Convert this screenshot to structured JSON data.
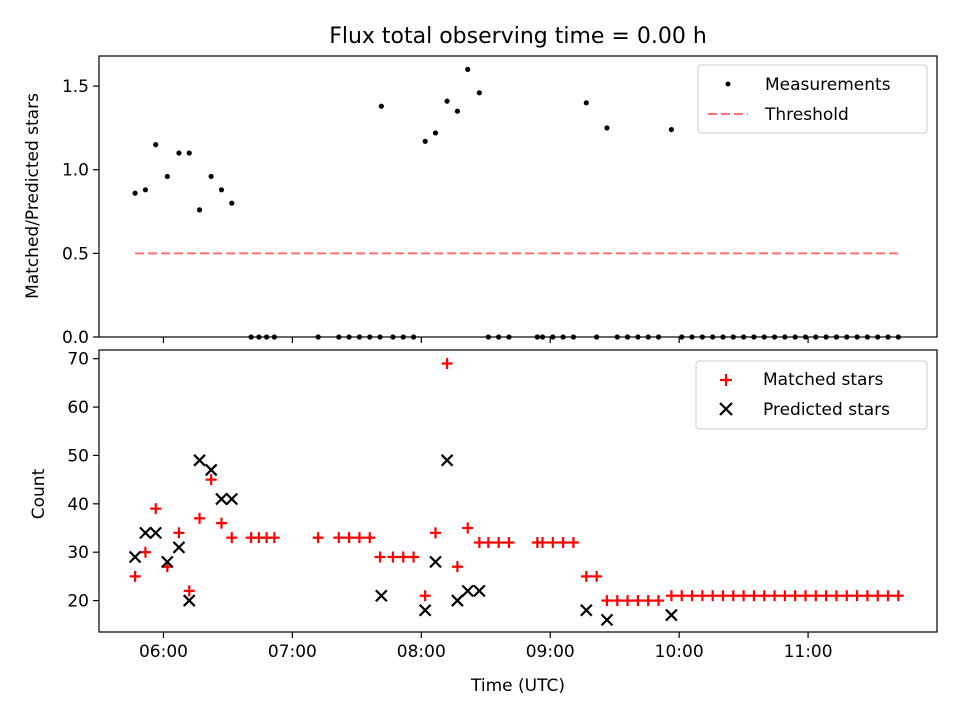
{
  "chart_data": [
    {
      "type": "scatter",
      "title": "Flux total observing time = 0.00 h",
      "xlabel": "",
      "ylabel": "Matched/Predicted stars",
      "xlim": [
        5.5,
        12.0
      ],
      "ylim": [
        0,
        1.68
      ],
      "yticks": [
        0.0,
        0.5,
        1.0,
        1.5
      ],
      "ytick_labels": [
        "0.0",
        "0.5",
        "1.0",
        "1.5"
      ],
      "legend_position": "top-right",
      "series": [
        {
          "name": "Measurements",
          "marker": "dot",
          "color": "#000000",
          "points": [
            [
              5.78,
              0.86
            ],
            [
              5.86,
              0.88
            ],
            [
              5.94,
              1.15
            ],
            [
              6.03,
              0.96
            ],
            [
              6.12,
              1.1
            ],
            [
              6.2,
              1.1
            ],
            [
              6.28,
              0.76
            ],
            [
              6.37,
              0.96
            ],
            [
              6.45,
              0.88
            ],
            [
              6.53,
              0.8
            ],
            [
              6.68,
              0
            ],
            [
              6.74,
              0
            ],
            [
              6.8,
              0
            ],
            [
              6.86,
              0
            ],
            [
              7.2,
              0
            ],
            [
              7.36,
              0
            ],
            [
              7.44,
              0
            ],
            [
              7.52,
              0
            ],
            [
              7.6,
              0
            ],
            [
              7.68,
              0
            ],
            [
              7.69,
              1.38
            ],
            [
              7.78,
              0
            ],
            [
              7.86,
              0
            ],
            [
              7.94,
              0
            ],
            [
              8.03,
              1.17
            ],
            [
              8.11,
              1.22
            ],
            [
              8.2,
              1.41
            ],
            [
              8.28,
              1.35
            ],
            [
              8.36,
              1.6
            ],
            [
              8.45,
              1.46
            ],
            [
              8.52,
              0
            ],
            [
              8.6,
              0
            ],
            [
              8.68,
              0
            ],
            [
              8.9,
              0
            ],
            [
              8.94,
              0
            ],
            [
              9.02,
              0
            ],
            [
              9.1,
              0
            ],
            [
              9.18,
              0
            ],
            [
              9.28,
              1.4
            ],
            [
              9.36,
              0
            ],
            [
              9.44,
              1.25
            ],
            [
              9.52,
              0
            ],
            [
              9.6,
              0
            ],
            [
              9.68,
              0
            ],
            [
              9.76,
              0
            ],
            [
              9.84,
              0
            ],
            [
              9.94,
              1.24
            ],
            [
              10.02,
              0
            ],
            [
              10.1,
              0
            ],
            [
              10.18,
              0
            ],
            [
              10.26,
              0
            ],
            [
              10.34,
              0
            ],
            [
              10.42,
              0
            ],
            [
              10.5,
              0
            ],
            [
              10.58,
              0
            ],
            [
              10.66,
              0
            ],
            [
              10.74,
              0
            ],
            [
              10.82,
              0
            ],
            [
              10.9,
              0
            ],
            [
              10.98,
              0
            ],
            [
              11.06,
              0
            ],
            [
              11.14,
              0
            ],
            [
              11.22,
              0
            ],
            [
              11.3,
              0
            ],
            [
              11.38,
              0
            ],
            [
              11.46,
              0
            ],
            [
              11.54,
              0
            ],
            [
              11.62,
              0
            ],
            [
              11.7,
              0
            ]
          ]
        },
        {
          "name": "Threshold",
          "line": "dashed",
          "color": "#ff7070",
          "points": [
            [
              5.78,
              0.5
            ],
            [
              11.7,
              0.5
            ]
          ]
        }
      ]
    },
    {
      "type": "scatter",
      "title": "",
      "xlabel": "Time (UTC)",
      "ylabel": "Count",
      "xlim": [
        5.5,
        12.0
      ],
      "ylim": [
        13.5,
        71.8
      ],
      "yticks": [
        20,
        30,
        40,
        50,
        60,
        70
      ],
      "ytick_labels": [
        "20",
        "30",
        "40",
        "50",
        "60",
        "70"
      ],
      "xticks": [
        6,
        7,
        8,
        9,
        10,
        11
      ],
      "xtick_labels": [
        "06:00",
        "07:00",
        "08:00",
        "09:00",
        "10:00",
        "11:00"
      ],
      "legend_position": "top-right",
      "series": [
        {
          "name": "Matched stars",
          "marker": "plus",
          "color": "#ff0000",
          "points": [
            [
              5.78,
              25
            ],
            [
              5.86,
              30
            ],
            [
              5.94,
              39
            ],
            [
              6.03,
              27
            ],
            [
              6.12,
              34
            ],
            [
              6.2,
              22
            ],
            [
              6.28,
              37
            ],
            [
              6.37,
              45
            ],
            [
              6.45,
              36
            ],
            [
              6.53,
              33
            ],
            [
              6.68,
              33
            ],
            [
              6.74,
              33
            ],
            [
              6.8,
              33
            ],
            [
              6.86,
              33
            ],
            [
              7.2,
              33
            ],
            [
              7.36,
              33
            ],
            [
              7.44,
              33
            ],
            [
              7.52,
              33
            ],
            [
              7.6,
              33
            ],
            [
              7.68,
              29
            ],
            [
              7.78,
              29
            ],
            [
              7.86,
              29
            ],
            [
              7.94,
              29
            ],
            [
              8.03,
              21
            ],
            [
              8.11,
              34
            ],
            [
              8.2,
              69
            ],
            [
              8.28,
              27
            ],
            [
              8.36,
              35
            ],
            [
              8.45,
              32
            ],
            [
              8.52,
              32
            ],
            [
              8.6,
              32
            ],
            [
              8.68,
              32
            ],
            [
              8.9,
              32
            ],
            [
              8.94,
              32
            ],
            [
              9.02,
              32
            ],
            [
              9.1,
              32
            ],
            [
              9.18,
              32
            ],
            [
              9.28,
              25
            ],
            [
              9.36,
              25
            ],
            [
              9.44,
              20
            ],
            [
              9.52,
              20
            ],
            [
              9.6,
              20
            ],
            [
              9.68,
              20
            ],
            [
              9.76,
              20
            ],
            [
              9.84,
              20
            ],
            [
              9.94,
              21
            ],
            [
              10.02,
              21
            ],
            [
              10.1,
              21
            ],
            [
              10.18,
              21
            ],
            [
              10.26,
              21
            ],
            [
              10.34,
              21
            ],
            [
              10.42,
              21
            ],
            [
              10.5,
              21
            ],
            [
              10.58,
              21
            ],
            [
              10.66,
              21
            ],
            [
              10.74,
              21
            ],
            [
              10.82,
              21
            ],
            [
              10.9,
              21
            ],
            [
              10.98,
              21
            ],
            [
              11.06,
              21
            ],
            [
              11.14,
              21
            ],
            [
              11.22,
              21
            ],
            [
              11.3,
              21
            ],
            [
              11.38,
              21
            ],
            [
              11.46,
              21
            ],
            [
              11.54,
              21
            ],
            [
              11.62,
              21
            ],
            [
              11.7,
              21
            ]
          ]
        },
        {
          "name": "Predicted stars",
          "marker": "x",
          "color": "#000000",
          "points": [
            [
              5.78,
              29
            ],
            [
              5.86,
              34
            ],
            [
              5.94,
              34
            ],
            [
              6.03,
              28
            ],
            [
              6.12,
              31
            ],
            [
              6.2,
              20
            ],
            [
              6.28,
              49
            ],
            [
              6.37,
              47
            ],
            [
              6.45,
              41
            ],
            [
              6.53,
              41
            ],
            [
              7.69,
              21
            ],
            [
              8.03,
              18
            ],
            [
              8.11,
              28
            ],
            [
              8.2,
              49
            ],
            [
              8.28,
              20
            ],
            [
              8.36,
              22
            ],
            [
              8.45,
              22
            ],
            [
              9.28,
              18
            ],
            [
              9.44,
              16
            ],
            [
              9.94,
              17
            ]
          ]
        }
      ]
    }
  ]
}
